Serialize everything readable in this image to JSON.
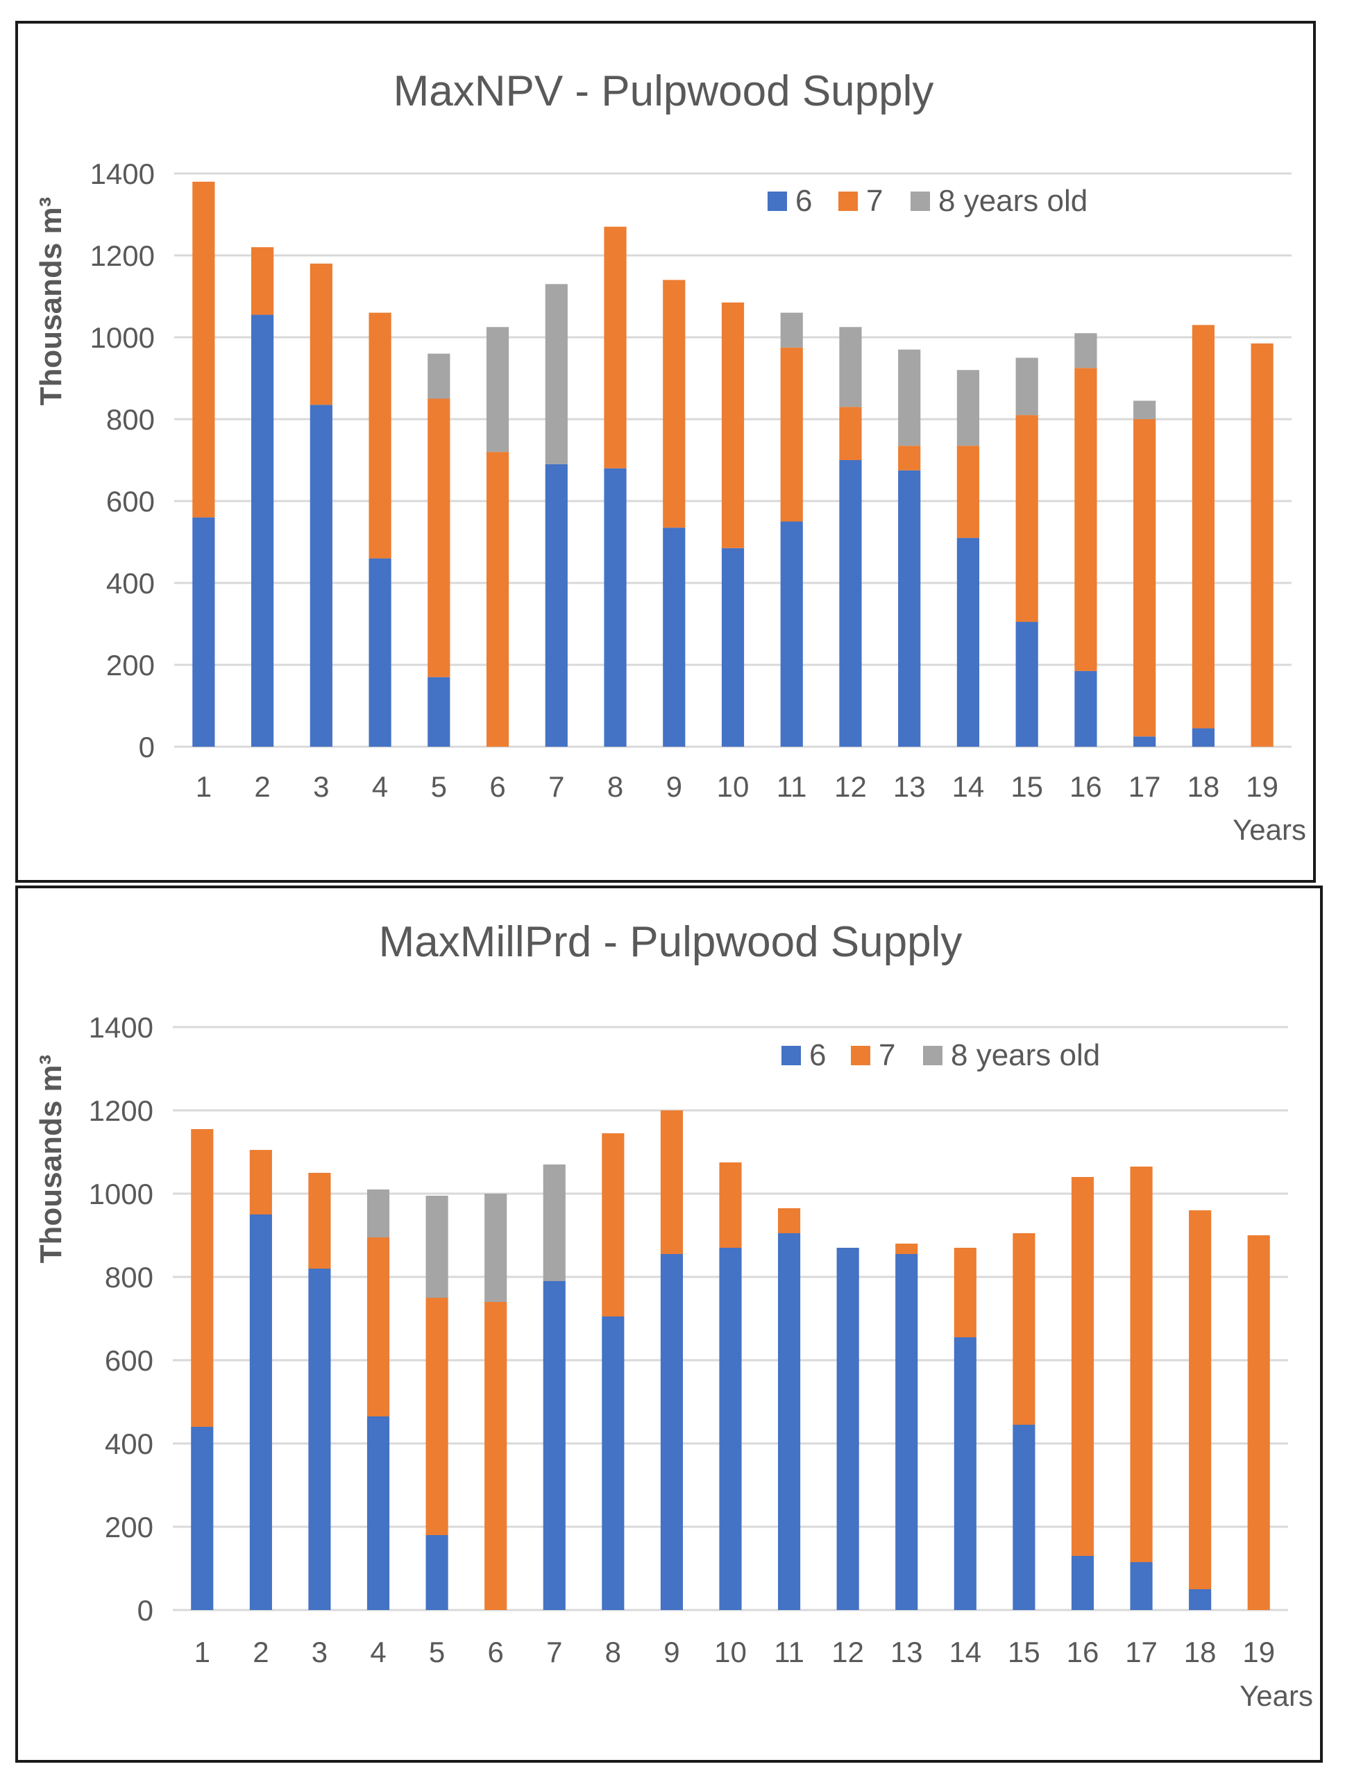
{
  "chart_data": [
    {
      "type": "bar",
      "stacked": true,
      "title": "MaxNPV - Pulpwood Supply",
      "xlabel": "Years",
      "ylabel": "Thousands m³",
      "ylim": [
        0,
        1400
      ],
      "yticks": [
        0,
        200,
        400,
        600,
        800,
        1000,
        1200,
        1400
      ],
      "grid": true,
      "legend_position": "top-right",
      "categories": [
        "1",
        "2",
        "3",
        "4",
        "5",
        "6",
        "7",
        "8",
        "9",
        "10",
        "11",
        "12",
        "13",
        "14",
        "15",
        "16",
        "17",
        "18",
        "19"
      ],
      "series": [
        {
          "name": "6",
          "color": "#4472c4",
          "values": [
            560,
            1055,
            835,
            460,
            170,
            0,
            690,
            680,
            535,
            485,
            550,
            700,
            675,
            510,
            305,
            185,
            25,
            45,
            0
          ]
        },
        {
          "name": "7",
          "color": "#ed7d31",
          "values": [
            820,
            165,
            345,
            600,
            680,
            720,
            0,
            590,
            605,
            600,
            425,
            130,
            60,
            225,
            505,
            740,
            775,
            985,
            985
          ]
        },
        {
          "name": "8 years old",
          "color": "#a5a5a5",
          "values": [
            0,
            0,
            0,
            0,
            110,
            305,
            440,
            0,
            0,
            0,
            85,
            195,
            235,
            185,
            140,
            85,
            45,
            0,
            0
          ]
        }
      ]
    },
    {
      "type": "bar",
      "stacked": true,
      "title": "MaxMillPrd - Pulpwood Supply",
      "xlabel": "Years",
      "ylabel": "Thousands m³",
      "ylim": [
        0,
        1400
      ],
      "yticks": [
        0,
        200,
        400,
        600,
        800,
        1000,
        1200,
        1400
      ],
      "grid": true,
      "legend_position": "top-right",
      "categories": [
        "1",
        "2",
        "3",
        "4",
        "5",
        "6",
        "7",
        "8",
        "9",
        "10",
        "11",
        "12",
        "13",
        "14",
        "15",
        "16",
        "17",
        "18",
        "19"
      ],
      "series": [
        {
          "name": "6",
          "color": "#4472c4",
          "values": [
            440,
            950,
            820,
            465,
            180,
            0,
            790,
            705,
            855,
            870,
            905,
            870,
            855,
            655,
            445,
            130,
            115,
            50,
            0
          ]
        },
        {
          "name": "7",
          "color": "#ed7d31",
          "values": [
            715,
            155,
            230,
            430,
            570,
            740,
            0,
            440,
            345,
            205,
            60,
            0,
            25,
            215,
            460,
            910,
            950,
            910,
            900
          ]
        },
        {
          "name": "8 years old",
          "color": "#a5a5a5",
          "values": [
            0,
            0,
            0,
            115,
            245,
            260,
            280,
            0,
            0,
            0,
            0,
            0,
            0,
            0,
            0,
            0,
            0,
            0,
            0
          ]
        }
      ]
    }
  ]
}
